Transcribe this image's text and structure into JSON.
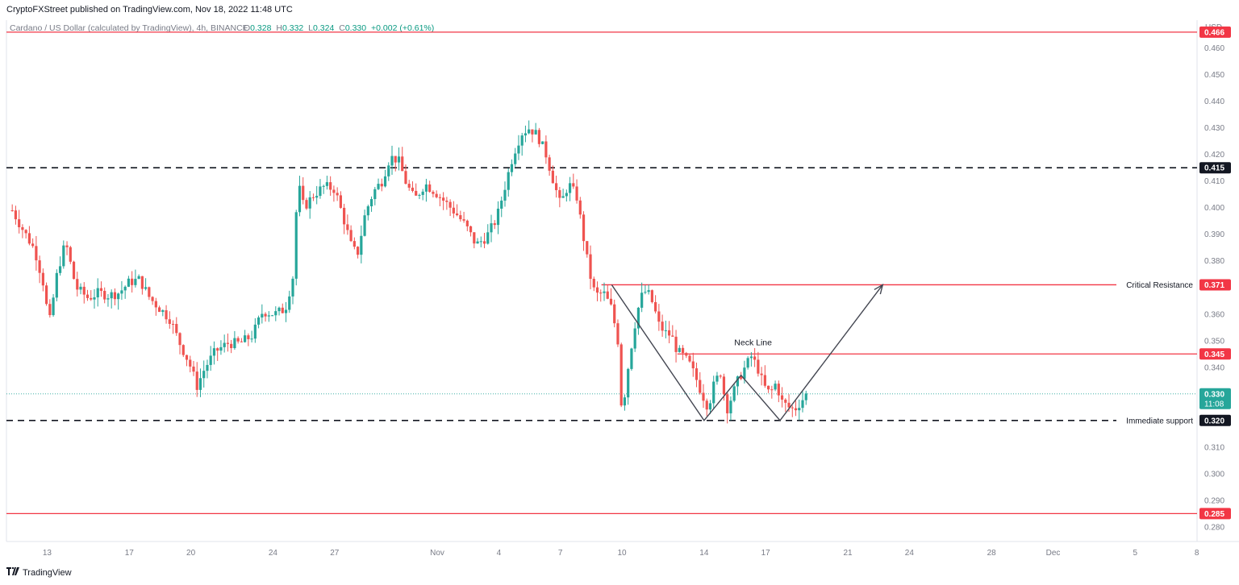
{
  "header": {
    "published": "CryptoFXStreet published on TradingView.com, Nov 18, 2022 11:48 UTC",
    "symbol": "Cardano / US Dollar (calculated by TradingView), 4h, BINANCE",
    "o_label": "O",
    "o_value": "0.328",
    "h_label": "H",
    "h_value": "0.332",
    "l_label": "L",
    "l_value": "0.324",
    "c_label": "C",
    "c_value": "0.330",
    "change": "+0.002 (+0.61%)",
    "currency": "USD"
  },
  "footer": {
    "brand": "TradingView"
  },
  "colors": {
    "up": "#26a69a",
    "down": "#ef5350",
    "level_red": "#f23645",
    "level_black": "#131722",
    "pattern": "#434651"
  },
  "chart_data": {
    "type": "candlestick",
    "timeframe": "4h",
    "ylim": [
      0.2745,
      0.4705
    ],
    "y_ticks": [
      0.28,
      0.29,
      0.3,
      0.31,
      0.32,
      0.33,
      0.34,
      0.35,
      0.36,
      0.37,
      0.38,
      0.39,
      0.4,
      0.41,
      0.42,
      0.43,
      0.44,
      0.45,
      0.46
    ],
    "x_ticks": [
      {
        "label": "13",
        "day": -19
      },
      {
        "label": "17",
        "day": -15
      },
      {
        "label": "20",
        "day": -12
      },
      {
        "label": "24",
        "day": -8
      },
      {
        "label": "27",
        "day": -5
      },
      {
        "label": "Nov",
        "day": 0
      },
      {
        "label": "4",
        "day": 3
      },
      {
        "label": "7",
        "day": 6
      },
      {
        "label": "10",
        "day": 9
      },
      {
        "label": "14",
        "day": 13
      },
      {
        "label": "17",
        "day": 16
      },
      {
        "label": "21",
        "day": 20
      },
      {
        "label": "24",
        "day": 23
      },
      {
        "label": "28",
        "day": 27
      },
      {
        "label": "Dec",
        "day": 30
      },
      {
        "label": "5",
        "day": 34
      },
      {
        "label": "8",
        "day": 37
      }
    ],
    "price_path": [
      [
        -20.7,
        0.399
      ],
      [
        -20.2,
        0.392
      ],
      [
        -19.6,
        0.384
      ],
      [
        -19.2,
        0.372
      ],
      [
        -18.9,
        0.356
      ],
      [
        -18.5,
        0.376
      ],
      [
        -18.1,
        0.387
      ],
      [
        -17.6,
        0.37
      ],
      [
        -17.0,
        0.366
      ],
      [
        -16.5,
        0.368
      ],
      [
        -16.0,
        0.367
      ],
      [
        -15.5,
        0.368
      ],
      [
        -15.0,
        0.372
      ],
      [
        -14.5,
        0.373
      ],
      [
        -14.0,
        0.366
      ],
      [
        -13.5,
        0.362
      ],
      [
        -13.0,
        0.358
      ],
      [
        -12.6,
        0.35
      ],
      [
        -12.1,
        0.342
      ],
      [
        -11.7,
        0.333
      ],
      [
        -11.3,
        0.34
      ],
      [
        -10.8,
        0.346
      ],
      [
        -10.2,
        0.349
      ],
      [
        -9.6,
        0.349
      ],
      [
        -9.0,
        0.352
      ],
      [
        -8.5,
        0.361
      ],
      [
        -7.9,
        0.36
      ],
      [
        -7.4,
        0.362
      ],
      [
        -7.0,
        0.375
      ],
      [
        -6.8,
        0.41
      ],
      [
        -6.5,
        0.4
      ],
      [
        -6.0,
        0.405
      ],
      [
        -5.5,
        0.408
      ],
      [
        -5.0,
        0.407
      ],
      [
        -4.6,
        0.397
      ],
      [
        -4.2,
        0.386
      ],
      [
        -3.9,
        0.382
      ],
      [
        -3.5,
        0.398
      ],
      [
        -3.1,
        0.406
      ],
      [
        -2.7,
        0.41
      ],
      [
        -2.3,
        0.419
      ],
      [
        -1.9,
        0.418
      ],
      [
        -1.5,
        0.409
      ],
      [
        -1.1,
        0.403
      ],
      [
        -0.6,
        0.409
      ],
      [
        -0.1,
        0.406
      ],
      [
        0.4,
        0.402
      ],
      [
        0.9,
        0.398
      ],
      [
        1.4,
        0.393
      ],
      [
        1.9,
        0.386
      ],
      [
        2.4,
        0.389
      ],
      [
        2.9,
        0.396
      ],
      [
        3.3,
        0.408
      ],
      [
        3.7,
        0.42
      ],
      [
        4.1,
        0.428
      ],
      [
        4.5,
        0.43
      ],
      [
        4.9,
        0.427
      ],
      [
        5.3,
        0.42
      ],
      [
        5.7,
        0.409
      ],
      [
        6.0,
        0.401
      ],
      [
        6.4,
        0.409
      ],
      [
        6.8,
        0.404
      ],
      [
        7.1,
        0.39
      ],
      [
        7.4,
        0.376
      ],
      [
        7.7,
        0.367
      ],
      [
        8.1,
        0.368
      ],
      [
        8.5,
        0.362
      ],
      [
        8.8,
        0.35
      ],
      [
        9.0,
        0.322
      ],
      [
        9.3,
        0.34
      ],
      [
        9.6,
        0.355
      ],
      [
        9.9,
        0.366
      ],
      [
        10.2,
        0.369
      ],
      [
        10.5,
        0.364
      ],
      [
        10.8,
        0.356
      ],
      [
        11.1,
        0.353
      ],
      [
        11.4,
        0.352
      ],
      [
        11.7,
        0.346
      ],
      [
        12.0,
        0.344
      ],
      [
        12.3,
        0.341
      ],
      [
        12.6,
        0.336
      ],
      [
        12.9,
        0.33
      ],
      [
        13.2,
        0.325
      ],
      [
        13.5,
        0.334
      ],
      [
        13.8,
        0.338
      ],
      [
        14.1,
        0.324
      ],
      [
        14.4,
        0.33
      ],
      [
        14.7,
        0.336
      ],
      [
        15.0,
        0.34
      ],
      [
        15.3,
        0.344
      ],
      [
        15.6,
        0.34
      ],
      [
        15.9,
        0.333
      ],
      [
        16.2,
        0.33
      ],
      [
        16.5,
        0.334
      ],
      [
        16.8,
        0.327
      ],
      [
        17.1,
        0.325
      ],
      [
        17.4,
        0.324
      ],
      [
        17.7,
        0.327
      ],
      [
        18.0,
        0.33
      ]
    ],
    "horizontal_levels": [
      {
        "value": 0.466,
        "label": "0.466",
        "color": "red",
        "style": "solid"
      },
      {
        "value": 0.415,
        "label": "0.415",
        "color": "black",
        "style": "dashed"
      },
      {
        "value": 0.371,
        "label": "0.371",
        "color": "red",
        "style": "solid",
        "annotation": "Critical Resistance",
        "from_day": 8.0
      },
      {
        "value": 0.345,
        "label": "0.345",
        "color": "red",
        "style": "solid",
        "from_day": 11.7
      },
      {
        "value": 0.32,
        "label": "0.320",
        "color": "black",
        "style": "dashed",
        "annotation": "Immediate support"
      },
      {
        "value": 0.285,
        "label": "0.285",
        "color": "red",
        "style": "solid"
      }
    ],
    "current_price": {
      "value": 0.33,
      "label": "0.330",
      "countdown": "11:08"
    },
    "pattern": {
      "label": "Neck Line",
      "points": [
        [
          8.5,
          0.371
        ],
        [
          13.0,
          0.32
        ],
        [
          14.8,
          0.337
        ],
        [
          16.7,
          0.32
        ]
      ],
      "arrow": [
        [
          16.7,
          0.32
        ],
        [
          21.7,
          0.371
        ]
      ]
    }
  }
}
